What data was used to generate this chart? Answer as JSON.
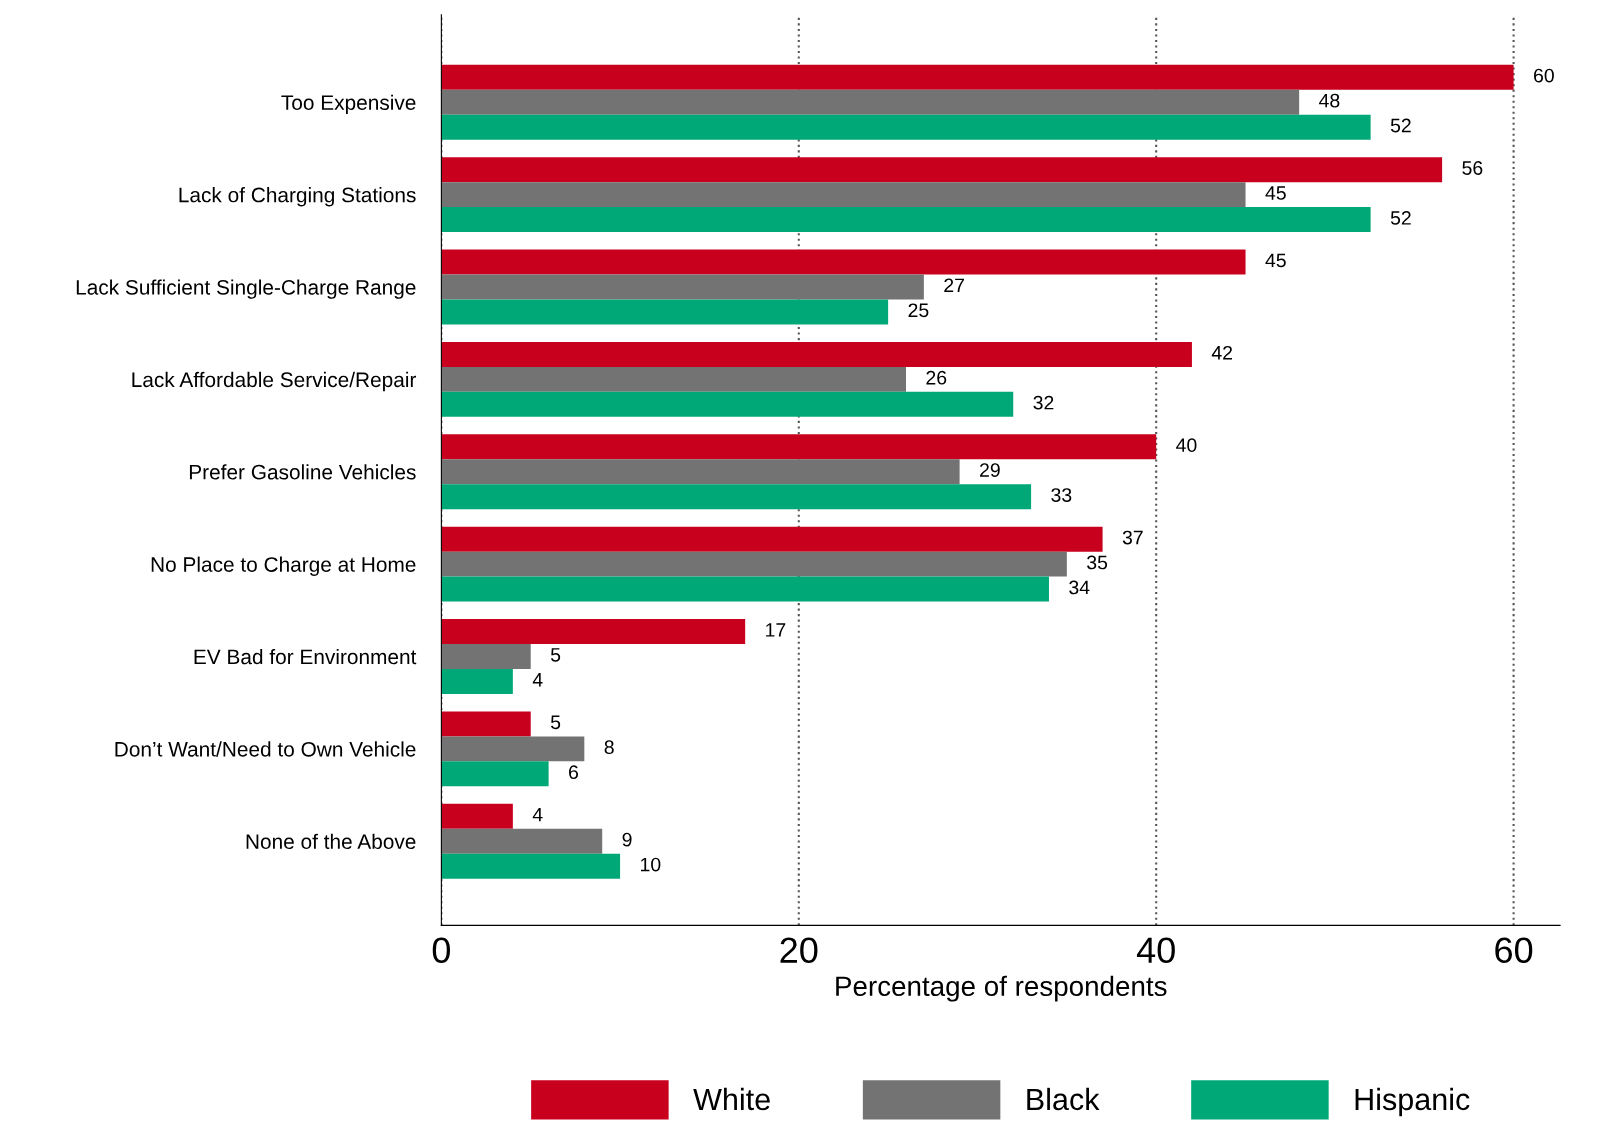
{
  "chart_data": {
    "type": "bar",
    "orientation": "horizontal",
    "xlabel": "Percentage of respondents",
    "categories": [
      "Too Expensive",
      "Lack of Charging Stations",
      "Lack Sufficient Single-Charge Range",
      "Lack Affordable Service/Repair",
      "Prefer Gasoline Vehicles",
      "No Place to Charge at Home",
      "EV Bad for Environment",
      "Don’t Want/Need to Own Vehicle",
      "None of the Above"
    ],
    "series": [
      {
        "name": "White",
        "color": "#c8001e",
        "values": [
          60,
          56,
          45,
          42,
          40,
          37,
          17,
          5,
          4
        ]
      },
      {
        "name": "Black",
        "color": "#737373",
        "values": [
          48,
          45,
          27,
          26,
          29,
          35,
          5,
          8,
          9
        ]
      },
      {
        "name": "Hispanic",
        "color": "#00a878",
        "values": [
          52,
          52,
          25,
          32,
          33,
          34,
          4,
          6,
          10
        ]
      }
    ],
    "xlim": [
      0,
      62.6
    ],
    "xticks": [
      0,
      20,
      40,
      60
    ],
    "grid": "x",
    "legend": "bottom",
    "data_labels": true
  }
}
